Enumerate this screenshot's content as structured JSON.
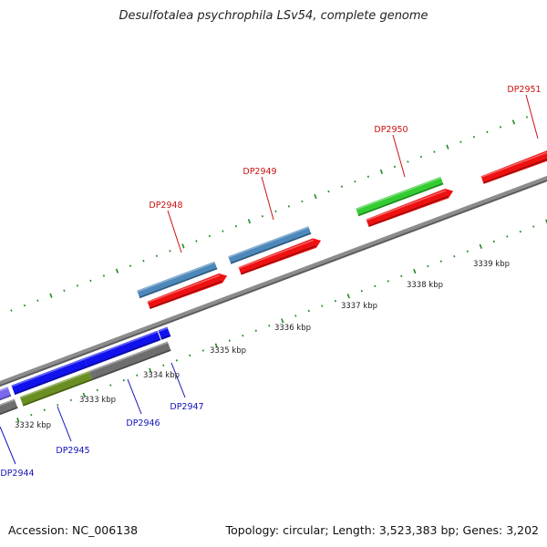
{
  "title": "Desulfotalea psychrophila LSv54, complete genome",
  "footer": {
    "accession": "Accession: NC_006138",
    "summary": "Topology: circular; Length: 3,523,383 bp; Genes: 3,202"
  },
  "colors": {
    "backbone": "#8c8c8c",
    "forward_label": "#cc1111",
    "reverse_label": "#1111bb",
    "tick": "#1f8a1f",
    "cds_red": "#ee1111",
    "steelblue": "#4d88bb",
    "green": "#33cc33",
    "blue": "#1111ee",
    "gray": "#6e6e6e",
    "olive": "#6b8e23",
    "violet": "#7b68ee"
  },
  "tick_labels": [
    "3332 kbp",
    "3333 kbp",
    "3334 kbp",
    "3335 kbp",
    "3336 kbp",
    "3337 kbp",
    "3338 kbp",
    "3339 kbp"
  ],
  "genes_forward": [
    {
      "name": "DP2948",
      "colors": [
        "steelblue",
        "cds_red"
      ]
    },
    {
      "name": "DP2949",
      "colors": [
        "steelblue",
        "cds_red"
      ]
    },
    {
      "name": "DP2950",
      "colors": [
        "green",
        "cds_red"
      ]
    },
    {
      "name": "DP2951",
      "colors": [
        "cds_red"
      ]
    }
  ],
  "genes_reverse": [
    {
      "name": "DP2944",
      "colors": [
        "violet"
      ]
    },
    {
      "name": "DP2945",
      "colors": [
        "blue",
        "olive"
      ]
    },
    {
      "name": "DP2946",
      "colors": [
        "blue",
        "gray"
      ]
    },
    {
      "name": "DP2947",
      "colors": [
        "blue"
      ]
    }
  ]
}
